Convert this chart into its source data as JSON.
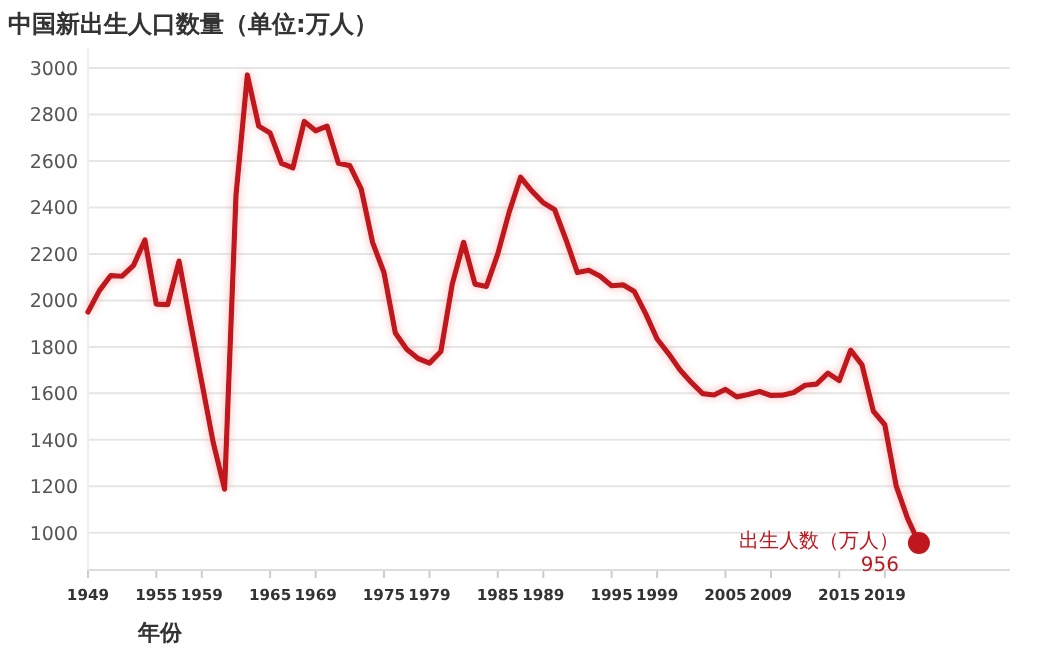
{
  "chart_data": {
    "type": "line",
    "title": "中国新出生人口数量（单位:万人）",
    "xlabel": "年份",
    "x": [
      1949,
      1950,
      1951,
      1952,
      1953,
      1954,
      1955,
      1956,
      1957,
      1958,
      1959,
      1960,
      1961,
      1962,
      1963,
      1964,
      1965,
      1966,
      1967,
      1968,
      1969,
      1970,
      1971,
      1972,
      1973,
      1974,
      1975,
      1976,
      1977,
      1978,
      1979,
      1980,
      1981,
      1982,
      1983,
      1984,
      1985,
      1986,
      1987,
      1988,
      1989,
      1990,
      1991,
      1992,
      1993,
      1994,
      1995,
      1996,
      1997,
      1998,
      1999,
      2000,
      2001,
      2002,
      2003,
      2004,
      2005,
      2006,
      2007,
      2008,
      2009,
      2010,
      2011,
      2012,
      2013,
      2014,
      2015,
      2016,
      2017,
      2018,
      2019,
      2020,
      2021,
      2022
    ],
    "series": [
      {
        "name": "出生人数（万人）",
        "color": "#c0161e",
        "values": [
          1950,
          2042,
          2107,
          2104,
          2151,
          2260,
          1984,
          1982,
          2169,
          1904,
          1647,
          1389,
          1188,
          2451,
          2970,
          2750,
          2720,
          2590,
          2570,
          2770,
          2730,
          2750,
          2590,
          2580,
          2480,
          2250,
          2120,
          1860,
          1790,
          1750,
          1730,
          1780,
          2070,
          2250,
          2070,
          2060,
          2200,
          2380,
          2530,
          2470,
          2420,
          2390,
          2260,
          2120,
          2130,
          2104,
          2063,
          2067,
          2038,
          1942,
          1834,
          1771,
          1702,
          1647,
          1599,
          1593,
          1617,
          1585,
          1595,
          1608,
          1591,
          1592,
          1604,
          1635,
          1640,
          1687,
          1655,
          1786,
          1723,
          1523,
          1465,
          1202,
          1062,
          956
        ],
        "value_labels": [
          null,
          null,
          null,
          null,
          null,
          null,
          null,
          null,
          null,
          null,
          null,
          null,
          null,
          null,
          null,
          null,
          null,
          null,
          null,
          null,
          null,
          null,
          null,
          null,
          null,
          null,
          null,
          null,
          null,
          null,
          null,
          null,
          null,
          null,
          null,
          null,
          null,
          null,
          null,
          null,
          null,
          null,
          null,
          null,
          null,
          null,
          null,
          null,
          null,
          null,
          null,
          null,
          null,
          null,
          null,
          null,
          null,
          null,
          null,
          null,
          null,
          null,
          null,
          null,
          null,
          null,
          null,
          null,
          null,
          null,
          null,
          null,
          null,
          "956"
        ]
      }
    ],
    "xlim": [
      1949,
      2030
    ],
    "ylim": [
      840,
      3000
    ],
    "xticks": [
      1949,
      1955,
      1959,
      1965,
      1969,
      1975,
      1979,
      1985,
      1989,
      1995,
      1999,
      2005,
      2009,
      2015,
      2019
    ],
    "yticks": [
      1000,
      1200,
      1400,
      1600,
      1800,
      2000,
      2200,
      2400,
      2600,
      2800,
      3000
    ],
    "grid": "y"
  }
}
